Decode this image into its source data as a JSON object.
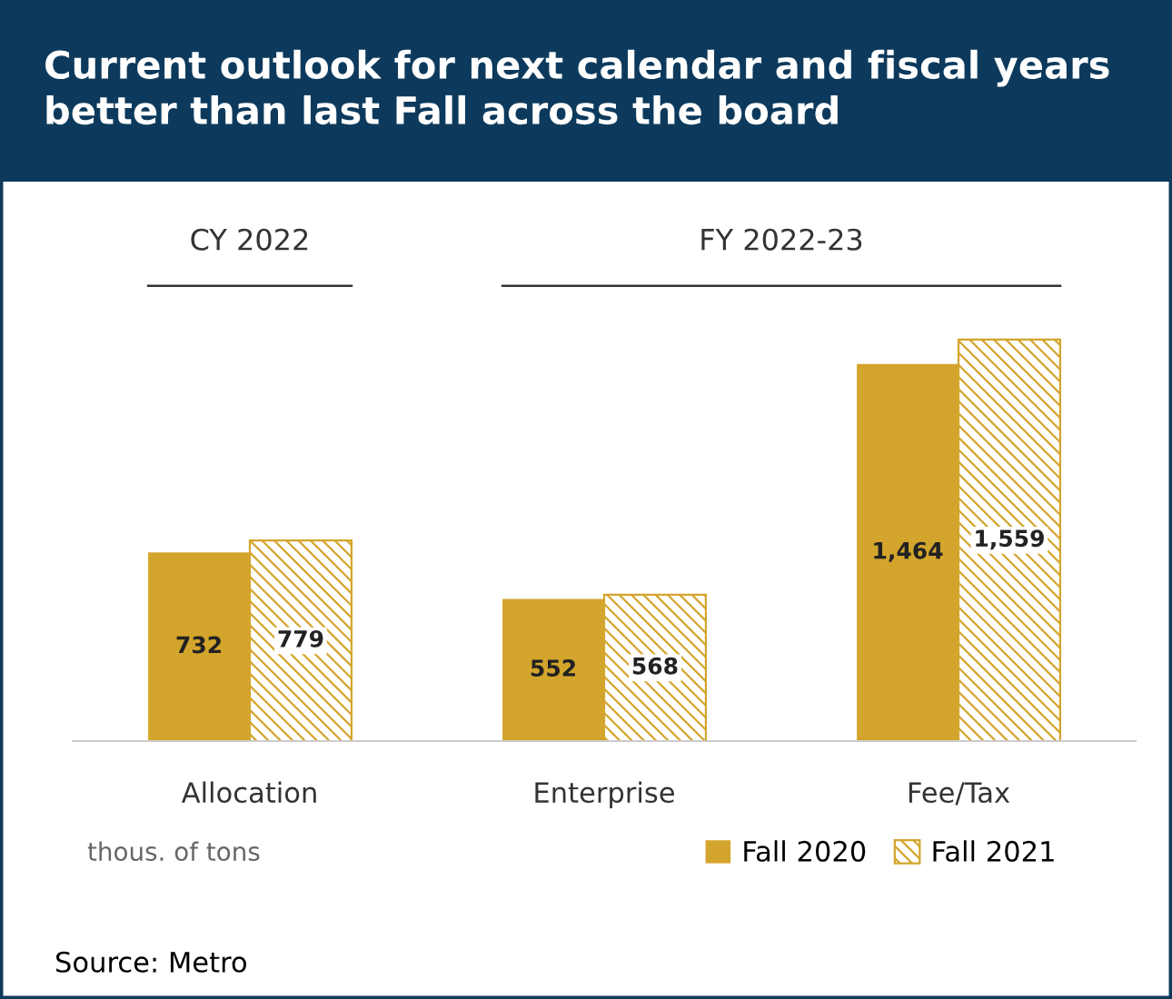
{
  "chart_data": {
    "type": "bar",
    "title": "Current outlook for next calendar and fiscal years better than last Fall across the board",
    "categories": [
      "Allocation",
      "Enterprise",
      "Fee/Tax"
    ],
    "series": [
      {
        "name": "Fall 2020",
        "color": "#d4a52c",
        "values": [
          732,
          552,
          1464
        ],
        "value_labels": [
          "732",
          "552",
          "1,464"
        ]
      },
      {
        "name": "Fall 2021",
        "color": "#d4a52c",
        "values": [
          779,
          568,
          1559
        ],
        "value_labels": [
          "779",
          "568",
          "1,559"
        ]
      }
    ],
    "legend": "bottom right",
    "grid": false,
    "annotations": [
      "CY 2022",
      "FY 2022-23",
      "thous. of tons",
      "Source: Metro"
    ]
  }
}
